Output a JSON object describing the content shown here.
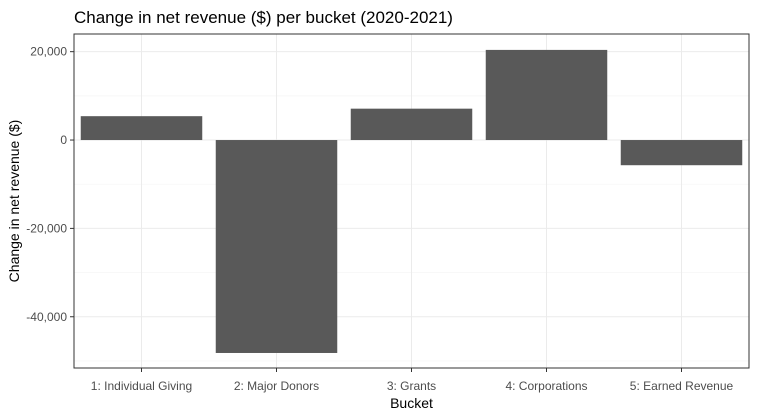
{
  "chart_data": {
    "type": "bar",
    "title": "Change in net revenue ($) per bucket (2020-2021)",
    "xlabel": "Bucket",
    "ylabel": "Change in net revenue ($)",
    "categories": [
      "1: Individual Giving",
      "2: Major Donors",
      "3: Grants",
      "4: Corporations",
      "5: Earned Revenue"
    ],
    "values": [
      5400,
      -48200,
      7100,
      20400,
      -5700
    ],
    "ylim": [
      -51600,
      24000
    ],
    "yticks": [
      20000,
      0,
      -20000,
      -40000
    ],
    "ytick_labels": [
      "20,000",
      "0",
      "-20,000",
      "-40,000"
    ],
    "grid": true,
    "bar_color": "#595959",
    "theme": "bw"
  }
}
